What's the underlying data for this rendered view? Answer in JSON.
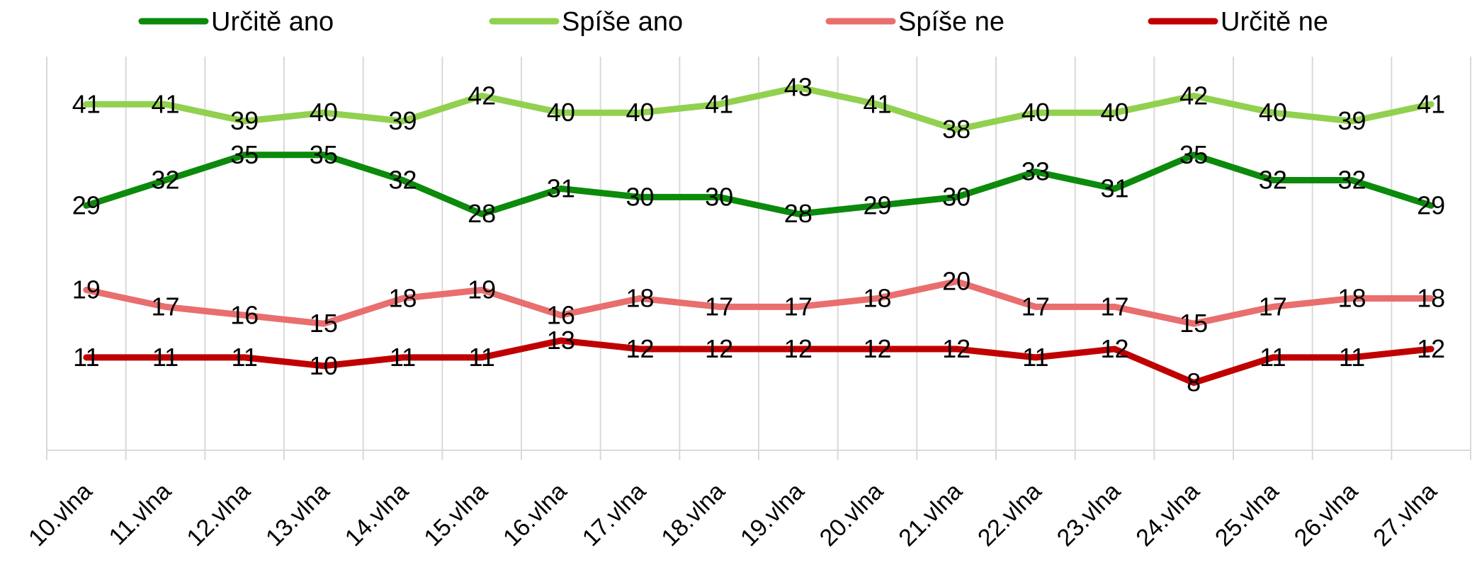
{
  "chart_data": {
    "type": "line",
    "title": "",
    "xlabel": "",
    "ylabel": "",
    "categories": [
      "10.vlna",
      "11.vlna",
      "12.vlna",
      "13.vlna",
      "14.vlna",
      "15.vlna",
      "16.vlna",
      "17.vlna",
      "18.vlna",
      "19.vlna",
      "20.vlna",
      "21.vlna",
      "22.vlna",
      "23.vlna",
      "24.vlna",
      "25.vlna",
      "26.vlna",
      "27.vlna"
    ],
    "ylim": [
      0,
      50
    ],
    "grid": "vertical",
    "legend": "top",
    "series": [
      {
        "name": "Určitě ano",
        "color": "#0b8a0b",
        "values": [
          29,
          32,
          35,
          35,
          32,
          28,
          31,
          30,
          30,
          28,
          29,
          30,
          33,
          31,
          35,
          32,
          32,
          29
        ]
      },
      {
        "name": "Spíše ano",
        "color": "#92d050",
        "values": [
          41,
          41,
          39,
          40,
          39,
          42,
          40,
          40,
          41,
          43,
          41,
          38,
          40,
          40,
          42,
          40,
          39,
          41
        ]
      },
      {
        "name": "Spíše ne",
        "color": "#e96e6e",
        "values": [
          19,
          17,
          16,
          15,
          18,
          19,
          16,
          18,
          17,
          17,
          18,
          20,
          17,
          17,
          15,
          17,
          18,
          18
        ]
      },
      {
        "name": "Určitě ne",
        "color": "#c00000",
        "values": [
          11,
          11,
          11,
          10,
          11,
          11,
          13,
          12,
          12,
          12,
          12,
          12,
          11,
          12,
          8,
          11,
          11,
          12
        ]
      }
    ]
  }
}
